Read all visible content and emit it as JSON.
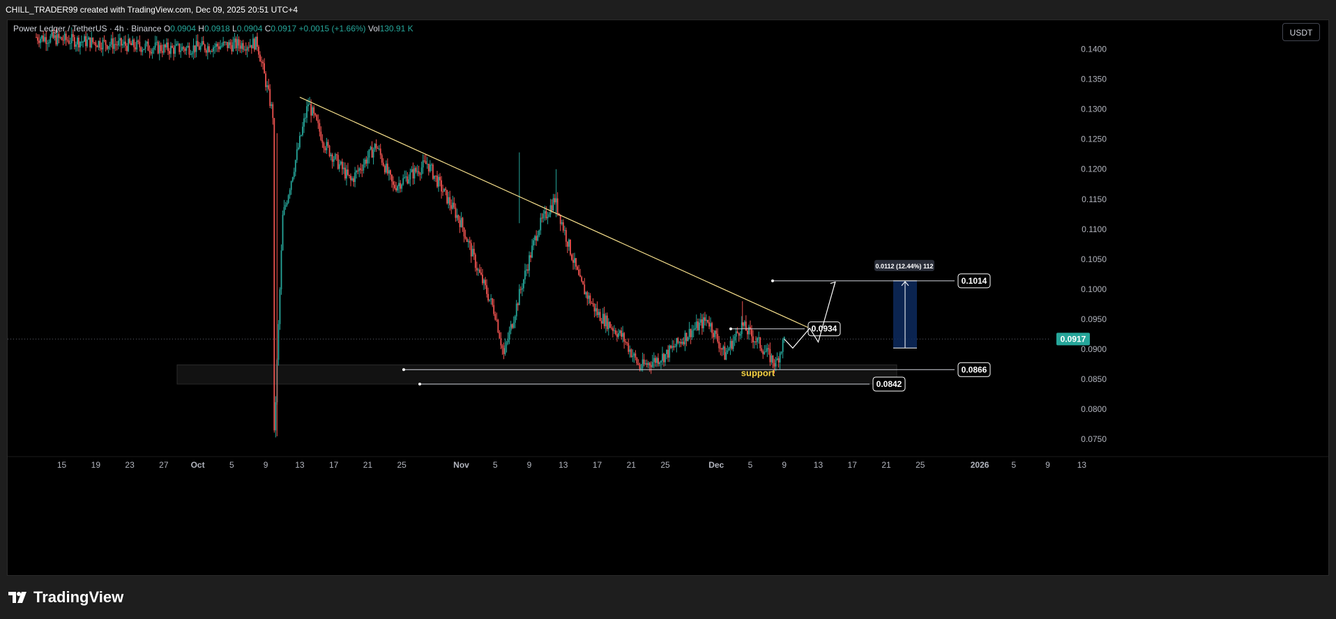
{
  "header": {
    "attribution": "CHILL_TRADER99 created with TradingView.com, Dec 09, 2025 20:51 UTC+4"
  },
  "legend": {
    "symbol": "Power Ledger / TetherUS · 4h · Binance",
    "o_label": "O",
    "o_value": "0.0904",
    "h_label": "H",
    "h_value": "0.0918",
    "l_label": "L",
    "l_value": "0.0904",
    "c_label": "C",
    "c_value": "0.0917",
    "change": "+0.0015 (+1.66%)",
    "vol_label": "Vol",
    "vol_value": "130.91 K"
  },
  "currency_button": "USDT",
  "footer": {
    "brand": "TradingView"
  },
  "colors": {
    "up": "#26a69a",
    "down": "#ef5350",
    "trendline": "#f7e08c",
    "support_text": "#f5d142",
    "background": "#000000",
    "range_box": "#0d2a5e"
  },
  "chart_data": {
    "type": "candlestick",
    "timeframe": "4h",
    "ylim": [
      0.072,
      0.1425
    ],
    "y_ticks": [
      "0.1400",
      "0.1350",
      "0.1300",
      "0.1250",
      "0.1200",
      "0.1150",
      "0.1100",
      "0.1050",
      "0.1000",
      "0.0950",
      "0.0900",
      "0.0850",
      "0.0800",
      "0.0750"
    ],
    "x_ticks": [
      "15",
      "19",
      "23",
      "27",
      "Oct",
      "5",
      "9",
      "13",
      "17",
      "21",
      "25",
      "Nov",
      "5",
      "9",
      "13",
      "17",
      "21",
      "25",
      "Dec",
      "5",
      "9",
      "13",
      "17",
      "21",
      "25",
      "2026",
      "5",
      "9",
      "13"
    ],
    "last_price": "0.0917",
    "price_path": [
      [
        "Sep 12",
        0.142
      ],
      [
        "Sep 28",
        0.14
      ],
      [
        "Oct 8",
        0.141
      ],
      [
        "Oct 10",
        0.128
      ],
      [
        "Oct 10",
        0.0755
      ],
      [
        "Oct 11",
        0.112
      ],
      [
        "Oct 14",
        0.131
      ],
      [
        "Oct 16",
        0.124
      ],
      [
        "Oct 19",
        0.118
      ],
      [
        "Oct 22",
        0.124
      ],
      [
        "Oct 24",
        0.117
      ],
      [
        "Oct 28",
        0.121
      ],
      [
        "Nov 1",
        0.111
      ],
      [
        "Nov 3",
        0.103
      ],
      [
        "Nov 5",
        0.096
      ],
      [
        "Nov 6",
        0.089
      ],
      [
        "Nov 8",
        0.1
      ],
      [
        "Nov 10",
        0.11
      ],
      [
        "Nov 12",
        0.115
      ],
      [
        "Nov 15",
        0.101
      ],
      [
        "Nov 17",
        0.096
      ],
      [
        "Nov 20",
        0.092
      ],
      [
        "Nov 22",
        0.087
      ],
      [
        "Nov 25",
        0.089
      ],
      [
        "Nov 28",
        0.093
      ],
      [
        "Nov 30",
        0.095
      ],
      [
        "Dec 2",
        0.089
      ],
      [
        "Dec 4",
        0.094
      ],
      [
        "Dec 6",
        0.091
      ],
      [
        "Dec 8",
        0.0875
      ],
      [
        "Dec 9",
        0.0917
      ]
    ],
    "annotations": {
      "trendline": {
        "from": [
          "Oct 13",
          0.132
        ],
        "to": [
          "Dec 12",
          0.0935
        ]
      },
      "levels": [
        {
          "price": 0.1014,
          "label": "0.1014"
        },
        {
          "price": 0.0934,
          "label": "0.0934"
        },
        {
          "price": 0.0866,
          "label": "0.0866"
        },
        {
          "price": 0.0842,
          "label": "0.0842"
        }
      ],
      "support_zone": {
        "from": 0.0842,
        "to": 0.0874,
        "label": "support"
      },
      "projection": [
        [
          "Dec 9",
          0.0917
        ],
        [
          "Dec 10",
          0.0902
        ],
        [
          "Dec 12",
          0.0935
        ],
        [
          "Dec 13",
          0.0912
        ],
        [
          "Dec 15",
          0.1012
        ]
      ],
      "measure": {
        "from": 0.0902,
        "to": 0.1014,
        "label": "0.0112 (12.44%) 112"
      }
    }
  }
}
